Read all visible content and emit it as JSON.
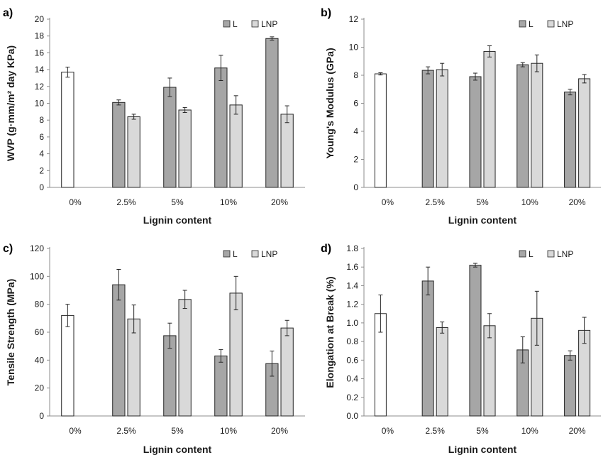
{
  "chart_data": [
    {
      "type": "bar",
      "panel_label": "a)",
      "categories": [
        "0%",
        "2.5%",
        "5%",
        "10%",
        "20%"
      ],
      "xlabel": "Lignin content",
      "ylabel": "WVP (g·mm/m² day KPa)",
      "ylim": [
        0,
        20
      ],
      "yticks": [
        0,
        2,
        4,
        6,
        8,
        10,
        12,
        14,
        16,
        18,
        20
      ],
      "control": {
        "category": "0%",
        "value": 13.7,
        "error": 0.6
      },
      "series": [
        {
          "name": "L",
          "color": "#a6a6a6",
          "values": [
            null,
            10.1,
            11.9,
            14.2,
            17.7
          ],
          "errors": [
            null,
            0.3,
            1.1,
            1.5,
            0.2
          ]
        },
        {
          "name": "LNP",
          "color": "#d9d9d9",
          "values": [
            null,
            8.4,
            9.2,
            9.8,
            8.7
          ],
          "errors": [
            null,
            0.3,
            0.3,
            1.1,
            1.0
          ]
        }
      ],
      "legend": "top-right"
    },
    {
      "type": "bar",
      "panel_label": "b)",
      "categories": [
        "0%",
        "2.5%",
        "5%",
        "10%",
        "20%"
      ],
      "xlabel": "Lignin content",
      "ylabel": "Young's Modulus (GPa)",
      "ylim": [
        0,
        12
      ],
      "yticks": [
        0,
        2,
        4,
        6,
        8,
        10,
        12
      ],
      "control": {
        "category": "0%",
        "value": 8.1,
        "error": 0.08
      },
      "series": [
        {
          "name": "L",
          "color": "#a6a6a6",
          "values": [
            null,
            8.35,
            7.9,
            8.75,
            6.8
          ],
          "errors": [
            null,
            0.25,
            0.25,
            0.15,
            0.2
          ]
        },
        {
          "name": "LNP",
          "color": "#d9d9d9",
          "values": [
            null,
            8.4,
            9.7,
            8.85,
            7.75
          ],
          "errors": [
            null,
            0.45,
            0.4,
            0.6,
            0.3
          ]
        }
      ],
      "legend": "top-right"
    },
    {
      "type": "bar",
      "panel_label": "c)",
      "categories": [
        "0%",
        "2.5%",
        "5%",
        "10%",
        "20%"
      ],
      "xlabel": "Lignin content",
      "ylabel": "Tensile Strength (MPa)",
      "ylim": [
        0,
        120
      ],
      "yticks": [
        0,
        20,
        40,
        60,
        80,
        100,
        120
      ],
      "control": {
        "category": "0%",
        "value": 72,
        "error": 8
      },
      "series": [
        {
          "name": "L",
          "color": "#a6a6a6",
          "values": [
            null,
            94,
            57.5,
            43,
            37.5
          ],
          "errors": [
            null,
            11,
            9,
            4.5,
            9
          ]
        },
        {
          "name": "LNP",
          "color": "#d9d9d9",
          "values": [
            null,
            69.5,
            83.5,
            88,
            63
          ],
          "errors": [
            null,
            10,
            6.5,
            12,
            5.5
          ]
        }
      ],
      "legend": "top-right"
    },
    {
      "type": "bar",
      "panel_label": "d)",
      "categories": [
        "0%",
        "2.5%",
        "5%",
        "10%",
        "20%"
      ],
      "xlabel": "Lignin content",
      "ylabel": "Elongation at Break (%)",
      "ylim": [
        0,
        1.8
      ],
      "yticks": [
        "0.0",
        "0.2",
        "0.4",
        "0.6",
        "0.8",
        "1.0",
        "1.2",
        "1.4",
        "1.6",
        "1.8"
      ],
      "control": {
        "category": "0%",
        "value": 1.1,
        "error": 0.2
      },
      "series": [
        {
          "name": "L",
          "color": "#a6a6a6",
          "values": [
            null,
            1.45,
            1.62,
            0.71,
            0.65
          ],
          "errors": [
            null,
            0.15,
            0.02,
            0.14,
            0.05
          ]
        },
        {
          "name": "LNP",
          "color": "#d9d9d9",
          "values": [
            null,
            0.95,
            0.97,
            1.05,
            0.92
          ],
          "errors": [
            null,
            0.06,
            0.13,
            0.29,
            0.14
          ]
        }
      ],
      "legend": "top-right"
    }
  ]
}
